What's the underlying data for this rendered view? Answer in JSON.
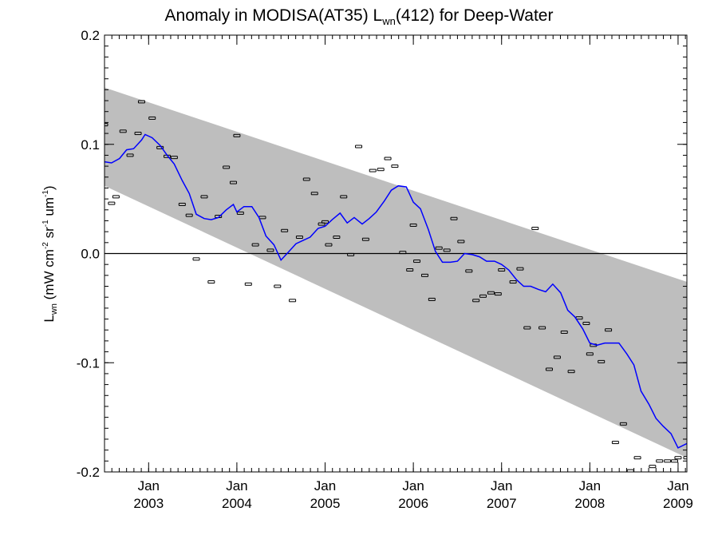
{
  "chart_data": {
    "type": "line",
    "title_parts": [
      "Anomaly in MODISA(AT35) L",
      "wn",
      "(412) for Deep-Water"
    ],
    "ylabel_parts": [
      "L",
      "wn",
      " (mW cm",
      "-2",
      " sr",
      "-1",
      " um",
      "-1",
      ")"
    ],
    "xlim": [
      2002.5,
      2009.1
    ],
    "ylim": [
      -0.2,
      0.2
    ],
    "ytick_values": [
      -0.2,
      -0.1,
      0.0,
      0.1,
      0.2
    ],
    "ytick_labels": [
      "-0.2",
      "-0.1",
      "0.0",
      "0.1",
      "0.2"
    ],
    "xtick_values": [
      2003,
      2004,
      2005,
      2006,
      2007,
      2008,
      2009
    ],
    "xtick_month_labels": [
      "Jan",
      "Jan",
      "Jan",
      "Jan",
      "Jan",
      "Jan",
      "Jan"
    ],
    "xtick_year_labels": [
      "2003",
      "2004",
      "2005",
      "2006",
      "2007",
      "2008",
      "2009"
    ],
    "band": {
      "x": [
        2002.5,
        2009.1
      ],
      "upper": [
        0.152,
        -0.026
      ],
      "lower": [
        0.062,
        -0.187
      ],
      "color": "#bebebe"
    },
    "zero_line": 0.0,
    "series": [
      {
        "style": "errorbar",
        "color": "#000000",
        "x": [
          2002.5,
          2002.58,
          2002.63,
          2002.71,
          2002.79,
          2002.88,
          2002.92,
          2003.04,
          2003.13,
          2003.21,
          2003.29,
          2003.38,
          2003.46,
          2003.54,
          2003.63,
          2003.71,
          2003.79,
          2003.88,
          2003.96,
          2004.0,
          2004.04,
          2004.13,
          2004.21,
          2004.29,
          2004.38,
          2004.46,
          2004.54,
          2004.63,
          2004.71,
          2004.79,
          2004.88,
          2004.96,
          2005.0,
          2005.04,
          2005.13,
          2005.21,
          2005.29,
          2005.38,
          2005.46,
          2005.54,
          2005.63,
          2005.71,
          2005.79,
          2005.88,
          2005.96,
          2006.0,
          2006.04,
          2006.13,
          2006.21,
          2006.29,
          2006.38,
          2006.46,
          2006.54,
          2006.63,
          2006.71,
          2006.79,
          2006.88,
          2006.96,
          2007.0,
          2007.13,
          2007.21,
          2007.29,
          2007.38,
          2007.46,
          2007.54,
          2007.63,
          2007.71,
          2007.79,
          2007.88,
          2007.96,
          2008.0,
          2008.04,
          2008.13,
          2008.21,
          2008.29,
          2008.38,
          2008.46,
          2008.54,
          2008.63,
          2008.71,
          2008.79,
          2008.88,
          2008.96,
          2009.0,
          2009.1
        ],
        "y": [
          0.118,
          0.046,
          0.052,
          0.112,
          0.09,
          0.11,
          0.139,
          0.124,
          0.097,
          0.089,
          0.088,
          0.045,
          0.035,
          -0.005,
          0.052,
          -0.026,
          0.034,
          0.079,
          0.065,
          0.108,
          0.037,
          -0.028,
          0.008,
          0.033,
          0.003,
          -0.03,
          0.021,
          -0.043,
          0.015,
          0.068,
          0.055,
          0.027,
          0.029,
          0.008,
          0.015,
          0.052,
          -0.001,
          0.098,
          0.013,
          0.076,
          0.077,
          0.087,
          0.08,
          0.001,
          -0.015,
          0.026,
          -0.007,
          -0.02,
          -0.042,
          0.005,
          0.003,
          0.032,
          0.011,
          -0.016,
          -0.043,
          -0.039,
          -0.036,
          -0.037,
          -0.015,
          -0.026,
          -0.014,
          -0.068,
          0.023,
          -0.068,
          -0.106,
          -0.095,
          -0.072,
          -0.108,
          -0.059,
          -0.064,
          -0.092,
          -0.084,
          -0.099,
          -0.07,
          -0.173,
          -0.156,
          -0.199,
          -0.187,
          -0.202,
          -0.195,
          -0.19,
          -0.19,
          -0.19,
          -0.187,
          -0.187
        ]
      },
      {
        "style": "line",
        "color": "#0000ff",
        "x": [
          2002.5,
          2002.58,
          2002.67,
          2002.75,
          2002.83,
          2002.92,
          2002.96,
          2003.04,
          2003.13,
          2003.21,
          2003.29,
          2003.38,
          2003.46,
          2003.54,
          2003.63,
          2003.71,
          2003.79,
          2003.88,
          2003.96,
          2004.0,
          2004.08,
          2004.17,
          2004.25,
          2004.33,
          2004.42,
          2004.5,
          2004.58,
          2004.67,
          2004.75,
          2004.83,
          2004.92,
          2005.0,
          2005.08,
          2005.17,
          2005.25,
          2005.33,
          2005.42,
          2005.5,
          2005.58,
          2005.67,
          2005.75,
          2005.83,
          2005.92,
          2006.0,
          2006.08,
          2006.17,
          2006.25,
          2006.33,
          2006.42,
          2006.5,
          2006.58,
          2006.67,
          2006.75,
          2006.83,
          2006.92,
          2007.0,
          2007.08,
          2007.17,
          2007.25,
          2007.33,
          2007.42,
          2007.5,
          2007.58,
          2007.67,
          2007.75,
          2007.83,
          2007.92,
          2008.0,
          2008.08,
          2008.17,
          2008.25,
          2008.33,
          2008.42,
          2008.5,
          2008.58,
          2008.67,
          2008.75,
          2008.83,
          2008.92,
          2009.0,
          2009.1
        ],
        "y": [
          0.084,
          0.083,
          0.087,
          0.095,
          0.096,
          0.104,
          0.109,
          0.106,
          0.099,
          0.09,
          0.082,
          0.067,
          0.055,
          0.036,
          0.032,
          0.031,
          0.033,
          0.04,
          0.045,
          0.038,
          0.043,
          0.043,
          0.033,
          0.016,
          0.008,
          -0.006,
          0.001,
          0.009,
          0.012,
          0.015,
          0.023,
          0.025,
          0.031,
          0.037,
          0.028,
          0.033,
          0.027,
          0.032,
          0.038,
          0.048,
          0.058,
          0.062,
          0.061,
          0.047,
          0.041,
          0.022,
          0.002,
          -0.008,
          -0.008,
          -0.007,
          0.0,
          -0.001,
          -0.003,
          -0.007,
          -0.007,
          -0.01,
          -0.015,
          -0.024,
          -0.03,
          -0.03,
          -0.033,
          -0.035,
          -0.028,
          -0.036,
          -0.052,
          -0.058,
          -0.069,
          -0.082,
          -0.084,
          -0.082,
          -0.082,
          -0.082,
          -0.092,
          -0.102,
          -0.126,
          -0.138,
          -0.151,
          -0.158,
          -0.165,
          -0.178,
          -0.174
        ]
      }
    ]
  }
}
